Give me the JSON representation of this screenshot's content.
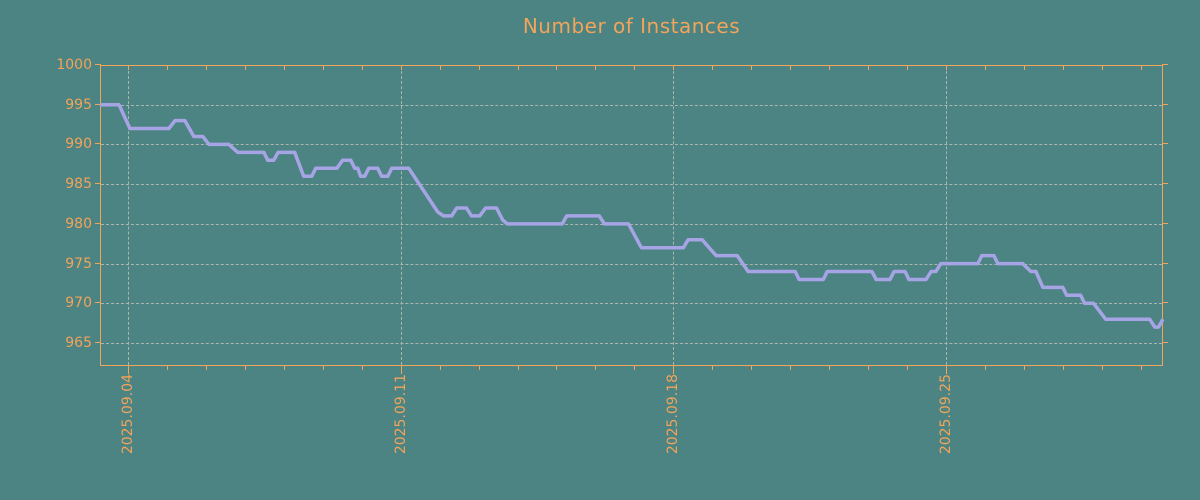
{
  "title": "Number of Instances",
  "colors": {
    "background": "#4B8482",
    "accent_orange": "#F2A45A",
    "line_lavender": "#A7A4E6",
    "grid_gray": "#ABB6AE"
  },
  "chart_data": {
    "type": "line",
    "title": "Number of Instances",
    "xlabel": "",
    "ylabel": "",
    "x_tick_labels": [
      "2025.09.04",
      "2025.09.11",
      "2025.09.18",
      "2025.09.25"
    ],
    "x_tick_days": [
      4,
      11,
      18,
      25
    ],
    "x_minor_tick_every_days": 1,
    "x_range_days_of_september_2025": [
      3.28,
      30.57
    ],
    "y_ticks": [
      965,
      970,
      975,
      980,
      985,
      990,
      995,
      1000
    ],
    "y_range": [
      962.1,
      1000
    ],
    "grid": true,
    "legend_position": "none",
    "series": [
      {
        "name": "instances",
        "color": "#A7A4E6",
        "points_day_value": [
          [
            3.28,
            995
          ],
          [
            3.77,
            995
          ],
          [
            4.05,
            992
          ],
          [
            5.05,
            992
          ],
          [
            5.21,
            993
          ],
          [
            5.46,
            993
          ],
          [
            5.69,
            991
          ],
          [
            5.92,
            991
          ],
          [
            6.08,
            990
          ],
          [
            6.59,
            990
          ],
          [
            6.82,
            989
          ],
          [
            7.49,
            989
          ],
          [
            7.59,
            988
          ],
          [
            7.74,
            988
          ],
          [
            7.85,
            989
          ],
          [
            8.28,
            989
          ],
          [
            8.51,
            986
          ],
          [
            8.72,
            986
          ],
          [
            8.82,
            987
          ],
          [
            9.36,
            987
          ],
          [
            9.51,
            988
          ],
          [
            9.72,
            988
          ],
          [
            9.82,
            987
          ],
          [
            9.9,
            987
          ],
          [
            9.97,
            986
          ],
          [
            10.08,
            986
          ],
          [
            10.18,
            987
          ],
          [
            10.41,
            987
          ],
          [
            10.51,
            986
          ],
          [
            10.67,
            986
          ],
          [
            10.77,
            987
          ],
          [
            11.21,
            987
          ],
          [
            11.95,
            981.5
          ],
          [
            12.1,
            981
          ],
          [
            12.31,
            981
          ],
          [
            12.44,
            982
          ],
          [
            12.69,
            982
          ],
          [
            12.82,
            981
          ],
          [
            13.03,
            981
          ],
          [
            13.18,
            982
          ],
          [
            13.46,
            982
          ],
          [
            13.62,
            980.5
          ],
          [
            13.74,
            980
          ],
          [
            15.15,
            980
          ],
          [
            15.26,
            981
          ],
          [
            16.1,
            981
          ],
          [
            16.23,
            980
          ],
          [
            16.85,
            980
          ],
          [
            17.18,
            977
          ],
          [
            18.26,
            977
          ],
          [
            18.38,
            978
          ],
          [
            18.74,
            978
          ],
          [
            19.1,
            976
          ],
          [
            19.64,
            976
          ],
          [
            19.92,
            974
          ],
          [
            21.13,
            974
          ],
          [
            21.23,
            973
          ],
          [
            21.85,
            973
          ],
          [
            21.95,
            974
          ],
          [
            23.1,
            974
          ],
          [
            23.21,
            973
          ],
          [
            23.56,
            973
          ],
          [
            23.67,
            974
          ],
          [
            23.95,
            974
          ],
          [
            24.05,
            973
          ],
          [
            24.49,
            973
          ],
          [
            24.62,
            974
          ],
          [
            24.74,
            974
          ],
          [
            24.87,
            975
          ],
          [
            25.82,
            975
          ],
          [
            25.92,
            976
          ],
          [
            26.23,
            976
          ],
          [
            26.33,
            975
          ],
          [
            26.97,
            975
          ],
          [
            27.18,
            974
          ],
          [
            27.31,
            974
          ],
          [
            27.49,
            972
          ],
          [
            28.0,
            972
          ],
          [
            28.1,
            971
          ],
          [
            28.46,
            971
          ],
          [
            28.56,
            970
          ],
          [
            28.79,
            970
          ],
          [
            29.1,
            968
          ],
          [
            30.23,
            968
          ],
          [
            30.36,
            967
          ],
          [
            30.46,
            967
          ],
          [
            30.57,
            968
          ]
        ]
      }
    ]
  }
}
